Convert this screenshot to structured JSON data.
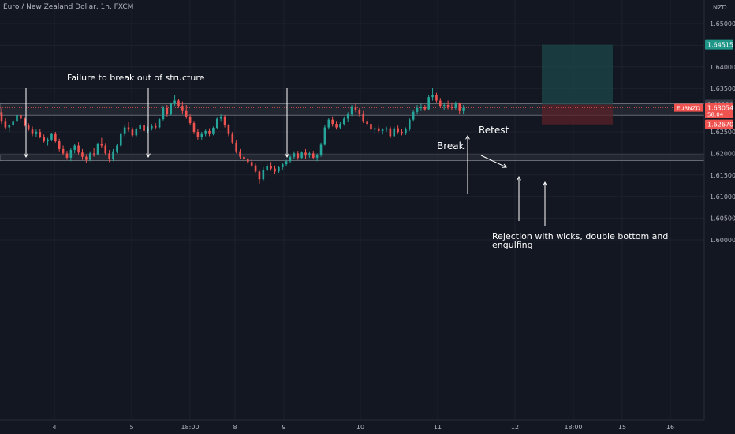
{
  "header": {
    "title": "Euro / New Zealand Dollar, 1h, FXCM"
  },
  "price_axis": {
    "unit": "NZD",
    "ticks": [
      "1.65000",
      "1.64000",
      "1.63500",
      "1.62500",
      "1.62000",
      "1.61500",
      "1.61000",
      "1.60500",
      "1.60000"
    ],
    "labels": {
      "target": "1.64515",
      "stop_top": "1.63130",
      "current_symbol": "EURNZD",
      "current_price": "1.63054",
      "countdown": "58:04",
      "stop": "1.62670"
    }
  },
  "time_axis": {
    "ticks": [
      "4",
      "5",
      "18:00",
      "8",
      "9",
      "10",
      "11",
      "12",
      "18:00",
      "15",
      "16"
    ]
  },
  "annotations": {
    "failure": "Failure to break out of structure",
    "break": "Break",
    "retest": "Retest",
    "rejection_line1": "Rejection with wicks, double bottom and",
    "rejection_line2": "engulfing"
  },
  "colors": {
    "background": "#131722",
    "up": "#26a69a",
    "down": "#ef5350",
    "target_zone": "#1d4a4b",
    "stop_zone": "#5a2227",
    "zone_band": "#2a2e39",
    "target_label": "#1f9688",
    "current_label": "#ef5350"
  },
  "chart_data": {
    "type": "candlestick",
    "title": "Euro / New Zealand Dollar, 1h, FXCM",
    "ylim": [
      1.5955,
      1.6535
    ],
    "y_ticks": [
      1.65,
      1.645,
      1.64,
      1.635,
      1.63,
      1.625,
      1.62,
      1.615,
      1.61,
      1.605,
      1.6
    ],
    "x_ticks": [
      "4",
      "5",
      "18:00",
      "8",
      "9",
      "10",
      "11",
      "12",
      "18:00",
      "15",
      "16"
    ],
    "candles": [
      [
        1.6295,
        1.6305,
        1.6268,
        1.6275
      ],
      [
        1.6275,
        1.6282,
        1.6255,
        1.626
      ],
      [
        1.626,
        1.6268,
        1.625,
        1.6265
      ],
      [
        1.6265,
        1.6278,
        1.6262,
        1.6275
      ],
      [
        1.6275,
        1.629,
        1.6272,
        1.6288
      ],
      [
        1.6288,
        1.6292,
        1.6275,
        1.628
      ],
      [
        1.628,
        1.6284,
        1.6262,
        1.6265
      ],
      [
        1.6265,
        1.627,
        1.6252,
        1.6255
      ],
      [
        1.6255,
        1.6262,
        1.624,
        1.6245
      ],
      [
        1.6245,
        1.6255,
        1.6238,
        1.625
      ],
      [
        1.625,
        1.6256,
        1.6235,
        1.6238
      ],
      [
        1.6238,
        1.6244,
        1.6225,
        1.6228
      ],
      [
        1.6228,
        1.6236,
        1.6218,
        1.6232
      ],
      [
        1.6232,
        1.6248,
        1.6228,
        1.6245
      ],
      [
        1.6245,
        1.625,
        1.6225,
        1.6228
      ],
      [
        1.6228,
        1.6234,
        1.6205,
        1.621
      ],
      [
        1.621,
        1.6218,
        1.6195,
        1.62
      ],
      [
        1.62,
        1.6206,
        1.6185,
        1.619
      ],
      [
        1.619,
        1.6212,
        1.6182,
        1.6208
      ],
      [
        1.6208,
        1.6222,
        1.62,
        1.6218
      ],
      [
        1.6218,
        1.6226,
        1.6198,
        1.6202
      ],
      [
        1.6202,
        1.621,
        1.6185,
        1.6192
      ],
      [
        1.6192,
        1.6198,
        1.6178,
        1.6185
      ],
      [
        1.6185,
        1.6205,
        1.6182,
        1.62
      ],
      [
        1.62,
        1.6212,
        1.6192,
        1.6198
      ],
      [
        1.6198,
        1.6225,
        1.6195,
        1.6222
      ],
      [
        1.6222,
        1.6236,
        1.6212,
        1.6218
      ],
      [
        1.6218,
        1.6224,
        1.6195,
        1.62
      ],
      [
        1.62,
        1.6208,
        1.618,
        1.6188
      ],
      [
        1.6188,
        1.621,
        1.6182,
        1.6205
      ],
      [
        1.6205,
        1.6222,
        1.62,
        1.6218
      ],
      [
        1.6218,
        1.6248,
        1.6215,
        1.6245
      ],
      [
        1.6245,
        1.6265,
        1.624,
        1.626
      ],
      [
        1.626,
        1.6272,
        1.625,
        1.6255
      ],
      [
        1.6255,
        1.626,
        1.6238,
        1.6242
      ],
      [
        1.6242,
        1.626,
        1.6238,
        1.6257
      ],
      [
        1.6257,
        1.627,
        1.6252,
        1.6265
      ],
      [
        1.6265,
        1.627,
        1.6248,
        1.6252
      ],
      [
        1.6252,
        1.6262,
        1.6247,
        1.6258
      ],
      [
        1.6258,
        1.6268,
        1.6253,
        1.6263
      ],
      [
        1.6263,
        1.627,
        1.6255,
        1.626
      ],
      [
        1.626,
        1.6282,
        1.6258,
        1.6279
      ],
      [
        1.6279,
        1.631,
        1.6276,
        1.6305
      ],
      [
        1.6305,
        1.6312,
        1.6285,
        1.629
      ],
      [
        1.629,
        1.6318,
        1.6287,
        1.6315
      ],
      [
        1.6315,
        1.6335,
        1.631,
        1.6322
      ],
      [
        1.6322,
        1.6326,
        1.6305,
        1.631
      ],
      [
        1.631,
        1.632,
        1.6292,
        1.6298
      ],
      [
        1.6298,
        1.6312,
        1.628,
        1.6285
      ],
      [
        1.6285,
        1.6292,
        1.6265,
        1.627
      ],
      [
        1.627,
        1.6275,
        1.6245,
        1.625
      ],
      [
        1.625,
        1.6256,
        1.6232,
        1.6238
      ],
      [
        1.6238,
        1.625,
        1.6232,
        1.6245
      ],
      [
        1.6245,
        1.6255,
        1.624,
        1.6252
      ],
      [
        1.6252,
        1.6258,
        1.624,
        1.6245
      ],
      [
        1.6245,
        1.6262,
        1.6242,
        1.6259
      ],
      [
        1.6259,
        1.6284,
        1.6256,
        1.628
      ],
      [
        1.628,
        1.629,
        1.6275,
        1.6285
      ],
      [
        1.6285,
        1.6288,
        1.626,
        1.6265
      ],
      [
        1.6265,
        1.6268,
        1.624,
        1.6245
      ],
      [
        1.6245,
        1.625,
        1.6222,
        1.6225
      ],
      [
        1.6225,
        1.623,
        1.62,
        1.6205
      ],
      [
        1.6205,
        1.621,
        1.6188,
        1.6192
      ],
      [
        1.6192,
        1.62,
        1.618,
        1.6186
      ],
      [
        1.6186,
        1.619,
        1.6175,
        1.618
      ],
      [
        1.618,
        1.6186,
        1.6168,
        1.6172
      ],
      [
        1.6172,
        1.6176,
        1.6155,
        1.6158
      ],
      [
        1.6158,
        1.616,
        1.613,
        1.614
      ],
      [
        1.614,
        1.6168,
        1.6135,
        1.6162
      ],
      [
        1.6162,
        1.6175,
        1.6158,
        1.617
      ],
      [
        1.617,
        1.618,
        1.616,
        1.6165
      ],
      [
        1.6165,
        1.6172,
        1.6152,
        1.6158
      ],
      [
        1.6158,
        1.617,
        1.6155,
        1.6168
      ],
      [
        1.6168,
        1.6178,
        1.6162,
        1.6175
      ],
      [
        1.6175,
        1.6185,
        1.617,
        1.6182
      ],
      [
        1.6182,
        1.6195,
        1.6178,
        1.6192
      ],
      [
        1.6192,
        1.6205,
        1.6188,
        1.62
      ],
      [
        1.62,
        1.6206,
        1.6185,
        1.619
      ],
      [
        1.619,
        1.6205,
        1.6186,
        1.6202
      ],
      [
        1.6202,
        1.621,
        1.6188,
        1.6195
      ],
      [
        1.6195,
        1.6205,
        1.619,
        1.62
      ],
      [
        1.62,
        1.6206,
        1.6186,
        1.619
      ],
      [
        1.619,
        1.62,
        1.6182,
        1.6196
      ],
      [
        1.6196,
        1.6225,
        1.6192,
        1.622
      ],
      [
        1.622,
        1.6265,
        1.6218,
        1.626
      ],
      [
        1.626,
        1.6282,
        1.6255,
        1.6278
      ],
      [
        1.6278,
        1.6285,
        1.6262,
        1.6268
      ],
      [
        1.6268,
        1.6275,
        1.6255,
        1.626
      ],
      [
        1.626,
        1.6272,
        1.6256,
        1.6268
      ],
      [
        1.6268,
        1.6285,
        1.6264,
        1.628
      ],
      [
        1.628,
        1.6295,
        1.6272,
        1.629
      ],
      [
        1.629,
        1.6312,
        1.6286,
        1.6308
      ],
      [
        1.6308,
        1.6315,
        1.6295,
        1.63
      ],
      [
        1.63,
        1.6305,
        1.6285,
        1.6292
      ],
      [
        1.6292,
        1.6298,
        1.627,
        1.6275
      ],
      [
        1.6275,
        1.6282,
        1.6262,
        1.6268
      ],
      [
        1.6268,
        1.6274,
        1.625,
        1.6255
      ],
      [
        1.6255,
        1.6262,
        1.6245,
        1.6258
      ],
      [
        1.6258,
        1.6264,
        1.6248,
        1.6252
      ],
      [
        1.6252,
        1.6258,
        1.6244,
        1.6255
      ],
      [
        1.6255,
        1.6262,
        1.625,
        1.6258
      ],
      [
        1.6258,
        1.6262,
        1.6235,
        1.624
      ],
      [
        1.624,
        1.6262,
        1.6238,
        1.6258
      ],
      [
        1.6258,
        1.6264,
        1.6245,
        1.625
      ],
      [
        1.625,
        1.6256,
        1.6242,
        1.6246
      ],
      [
        1.6246,
        1.626,
        1.6243,
        1.6256
      ],
      [
        1.6256,
        1.6282,
        1.6252,
        1.6278
      ],
      [
        1.6278,
        1.63,
        1.6275,
        1.6296
      ],
      [
        1.6296,
        1.6312,
        1.629,
        1.6305
      ],
      [
        1.6305,
        1.6315,
        1.6298,
        1.6308
      ],
      [
        1.6308,
        1.6312,
        1.6298,
        1.6302
      ],
      [
        1.6302,
        1.6335,
        1.63,
        1.633
      ],
      [
        1.633,
        1.6352,
        1.6322,
        1.6335
      ],
      [
        1.6335,
        1.634,
        1.6318,
        1.6322
      ],
      [
        1.6322,
        1.6328,
        1.6305,
        1.631
      ],
      [
        1.631,
        1.6318,
        1.63,
        1.6312
      ],
      [
        1.6312,
        1.6322,
        1.6302,
        1.6308
      ],
      [
        1.6308,
        1.6318,
        1.63,
        1.6305
      ],
      [
        1.6305,
        1.632,
        1.63,
        1.6315
      ],
      [
        1.6315,
        1.6318,
        1.6292,
        1.6298
      ],
      [
        1.6298,
        1.6312,
        1.629,
        1.6305
      ]
    ],
    "levels": {
      "resistance_band": [
        1.6288,
        1.6315
      ],
      "support_band": [
        1.6183,
        1.6197
      ]
    },
    "position": {
      "entry": 1.6313,
      "target": 1.64515,
      "stop": 1.6267,
      "current": 1.63054
    }
  }
}
